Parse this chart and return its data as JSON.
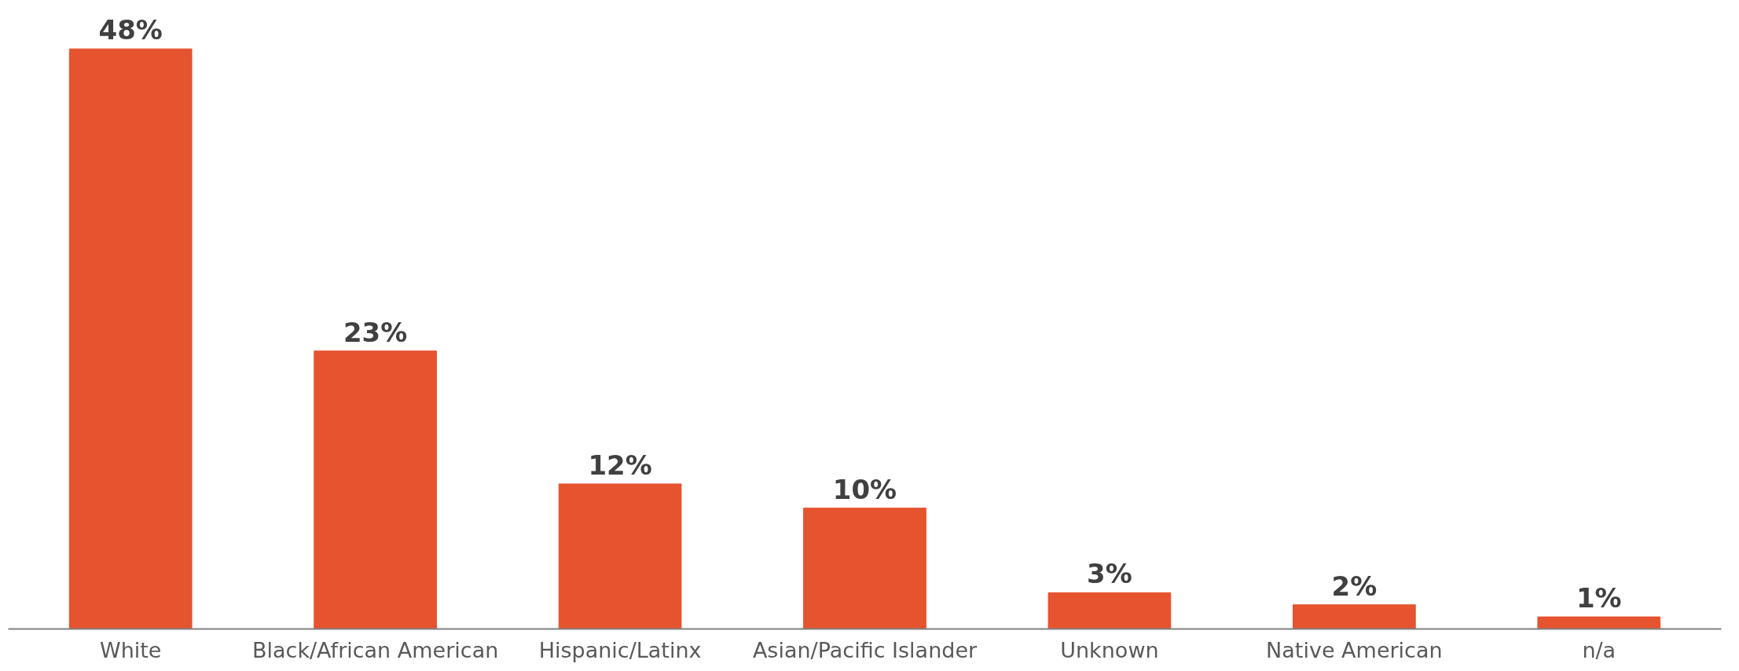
{
  "chart_data": {
    "type": "bar",
    "categories": [
      "White",
      "Black/African American",
      "Hispanic/Latinx",
      "Asian/Pacific Islander",
      "Unknown",
      "Native American",
      "n/a"
    ],
    "values": [
      48,
      23,
      12,
      10,
      3,
      2,
      1
    ],
    "value_labels": [
      "48%",
      "23%",
      "12%",
      "10%",
      "3%",
      "2%",
      "1%"
    ],
    "color": "#e5532f",
    "grid": false
  }
}
